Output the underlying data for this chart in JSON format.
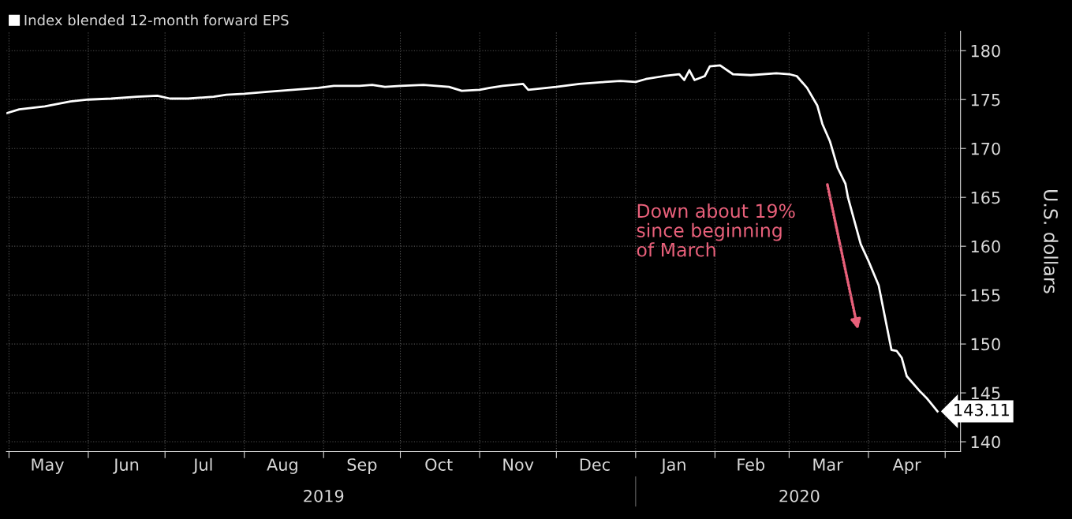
{
  "chart_data": {
    "type": "line",
    "x": [
      "2019-04-30",
      "2019-05-05",
      "2019-05-15",
      "2019-05-25",
      "2019-06-01",
      "2019-06-10",
      "2019-06-20",
      "2019-06-28",
      "2019-07-03",
      "2019-07-10",
      "2019-07-20",
      "2019-07-25",
      "2019-08-01",
      "2019-08-10",
      "2019-08-20",
      "2019-08-30",
      "2019-09-05",
      "2019-09-15",
      "2019-09-20",
      "2019-09-25",
      "2019-10-01",
      "2019-10-10",
      "2019-10-20",
      "2019-10-25",
      "2019-11-01",
      "2019-11-05",
      "2019-11-10",
      "2019-11-18",
      "2019-11-20",
      "2019-12-01",
      "2019-12-10",
      "2019-12-20",
      "2019-12-26",
      "2020-01-01",
      "2020-01-05",
      "2020-01-12",
      "2020-01-18",
      "2020-01-20",
      "2020-01-22",
      "2020-01-24",
      "2020-01-28",
      "2020-01-30",
      "2020-02-03",
      "2020-02-08",
      "2020-02-15",
      "2020-02-25",
      "2020-03-01",
      "2020-03-04",
      "2020-03-08",
      "2020-03-12",
      "2020-03-14",
      "2020-03-17",
      "2020-03-20",
      "2020-03-23",
      "2020-03-24",
      "2020-03-29",
      "2020-04-01",
      "2020-04-05",
      "2020-04-10",
      "2020-04-12",
      "2020-04-14",
      "2020-04-16",
      "2020-04-21",
      "2020-04-24",
      "2020-04-28"
    ],
    "series": [
      {
        "name": "Index blended 12-month forward EPS",
        "color": "#ffffff",
        "values": [
          173.6,
          174.0,
          174.3,
          174.8,
          175.0,
          175.1,
          175.3,
          175.4,
          175.1,
          175.1,
          175.3,
          175.5,
          175.6,
          175.8,
          176.0,
          176.2,
          176.4,
          176.4,
          176.5,
          176.3,
          176.4,
          176.5,
          176.3,
          175.9,
          176.0,
          176.2,
          176.4,
          176.6,
          176.0,
          176.3,
          176.6,
          176.8,
          176.9,
          176.8,
          177.1,
          177.4,
          177.6,
          177.0,
          178.0,
          177.0,
          177.4,
          178.4,
          178.5,
          177.6,
          177.5,
          177.7,
          177.6,
          177.4,
          176.2,
          174.4,
          172.5,
          170.7,
          168.0,
          166.4,
          165.0,
          160.2,
          158.5,
          156.0,
          149.4,
          149.3,
          148.6,
          146.7,
          145.2,
          144.4,
          143.11
        ],
        "value_labels": [
          null,
          null,
          null,
          null,
          null,
          null,
          null,
          null,
          null,
          null,
          null,
          null,
          null,
          null,
          null,
          null,
          null,
          null,
          null,
          null,
          null,
          null,
          null,
          null,
          null,
          null,
          null,
          null,
          null,
          null,
          null,
          null,
          null,
          null,
          null,
          null,
          null,
          null,
          null,
          null,
          null,
          null,
          null,
          null,
          null,
          null,
          null,
          null,
          null,
          null,
          null,
          null,
          null,
          null,
          null,
          null,
          null,
          null,
          null,
          null,
          null,
          null,
          null,
          null,
          "143.11"
        ]
      }
    ],
    "ylabel": "U.S. dollars",
    "xlim": [
      "2019-04-30",
      "2020-05-07"
    ],
    "xticks": [
      {
        "value": "2019-05-01",
        "label": null
      },
      {
        "value": "2019-06-01",
        "label": null
      },
      {
        "value": "2019-07-01",
        "label": null
      },
      {
        "value": "2019-08-01",
        "label": null
      },
      {
        "value": "2019-09-01",
        "label": null
      },
      {
        "value": "2019-10-01",
        "label": null
      },
      {
        "value": "2019-11-01",
        "label": null
      },
      {
        "value": "2019-12-01",
        "label": null
      },
      {
        "value": "2020-01-01",
        "label": null
      },
      {
        "value": "2020-02-01",
        "label": null
      },
      {
        "value": "2020-03-01",
        "label": null
      },
      {
        "value": "2020-04-01",
        "label": null
      },
      {
        "value": "2020-05-01",
        "label": null
      },
      {
        "value": "2019-05-16",
        "label": "May"
      },
      {
        "value": "2019-06-16",
        "label": "Jun"
      },
      {
        "value": "2019-07-16",
        "label": "Jul"
      },
      {
        "value": "2019-08-16",
        "label": "Aug"
      },
      {
        "value": "2019-09-16",
        "label": "Sep"
      },
      {
        "value": "2019-10-16",
        "label": "Oct"
      },
      {
        "value": "2019-11-16",
        "label": "Nov"
      },
      {
        "value": "2019-12-16",
        "label": "Dec"
      },
      {
        "value": "2020-01-16",
        "label": "Jan"
      },
      {
        "value": "2020-02-15",
        "label": "Feb"
      },
      {
        "value": "2020-03-16",
        "label": "Mar"
      },
      {
        "value": "2020-04-16",
        "label": "Apr"
      }
    ],
    "x2lim": [
      "2019-04-30",
      "2020-05-07"
    ],
    "x2ticks": [
      {
        "value": "2019-09-01",
        "label": "2019"
      },
      {
        "value": "2020-01-01",
        "label": null
      },
      {
        "value": "2020-03-05",
        "label": "2020"
      }
    ],
    "ylim": [
      139,
      182
    ],
    "yticks": [
      140,
      145,
      150,
      155,
      160,
      165,
      170,
      175,
      180
    ],
    "grid": true,
    "legend": "top left",
    "annotations": [
      "Down about 19%\nsince beginning\nof March"
    ]
  }
}
